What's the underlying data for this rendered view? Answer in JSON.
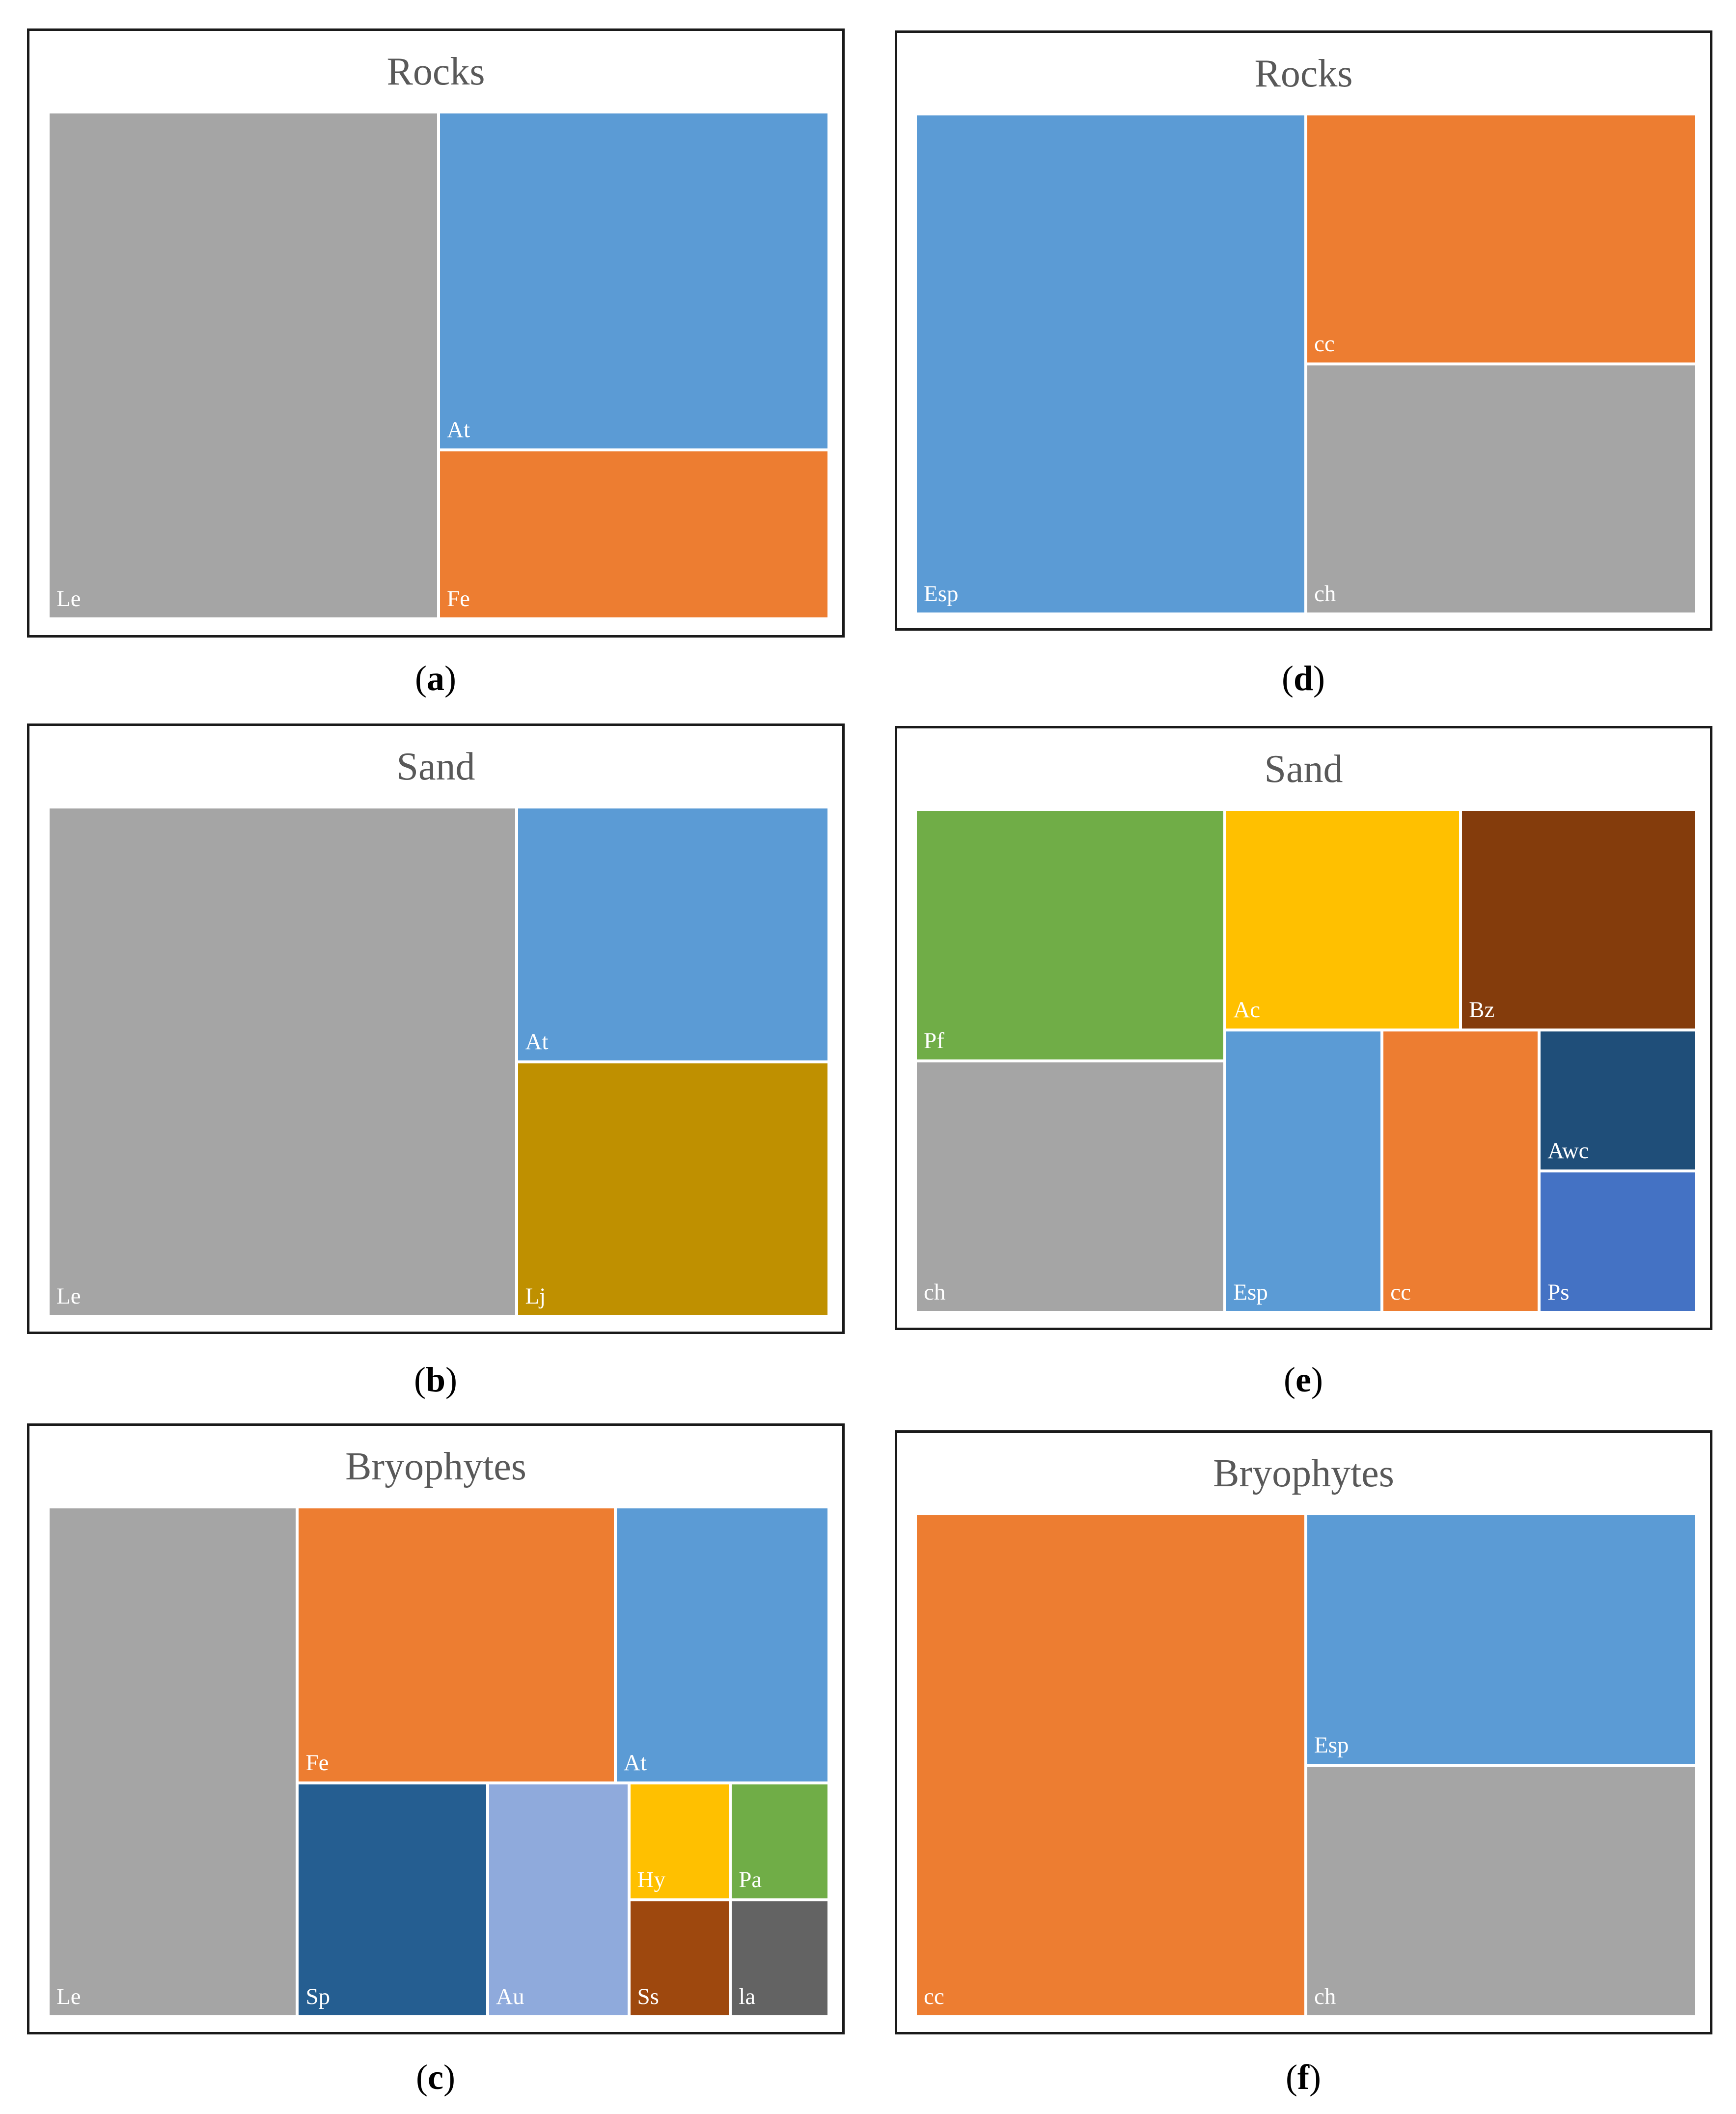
{
  "colors": {
    "gray": "#a5a5a5",
    "blue": "#5b9bd5",
    "orange": "#ed7d31",
    "gold": "#bf9000",
    "green": "#70ad47",
    "yellow": "#ffc000",
    "brown": "#843c0c",
    "navy": "#1f4e79",
    "royal": "#4472c4",
    "steel": "#255e91",
    "lavender": "#8faadc",
    "rust": "#9e480e",
    "darkgray": "#636363"
  },
  "chart_data": [
    {
      "type": "treemap",
      "panel": "a",
      "title": "Rocks",
      "caption": "a",
      "items": [
        {
          "label": "Le",
          "value": 1068,
          "color": "gray"
        },
        {
          "label": "At",
          "value": 712,
          "color": "blue"
        },
        {
          "label": "Fe",
          "value": 356,
          "color": "orange"
        }
      ]
    },
    {
      "type": "treemap",
      "panel": "b",
      "title": "Sand",
      "caption": "b",
      "items": [
        {
          "label": "Le",
          "value": 1287,
          "color": "gray"
        },
        {
          "label": "At",
          "value": 429,
          "color": "blue"
        },
        {
          "label": "Lj",
          "value": 428,
          "color": "gold"
        }
      ]
    },
    {
      "type": "treemap",
      "panel": "c",
      "title": "Bryophytes",
      "caption": "c",
      "items": [
        {
          "label": "Le",
          "value": 728,
          "color": "gray"
        },
        {
          "label": "Fe",
          "value": 503,
          "color": "orange"
        },
        {
          "label": "At",
          "value": 338,
          "color": "blue"
        },
        {
          "label": "Sp",
          "value": 255,
          "color": "steel"
        },
        {
          "label": "Au",
          "value": 189,
          "color": "lavender"
        },
        {
          "label": "Hy",
          "value": 68,
          "color": "yellow"
        },
        {
          "label": "Ss",
          "value": 68,
          "color": "rust"
        },
        {
          "label": "Pa",
          "value": 66,
          "color": "green"
        },
        {
          "label": "la",
          "value": 66,
          "color": "darkgray"
        }
      ]
    },
    {
      "type": "treemap",
      "panel": "d",
      "title": "Rocks",
      "caption": "d",
      "items": [
        {
          "label": "Esp",
          "value": 1045,
          "color": "blue"
        },
        {
          "label": "cc",
          "value": 523,
          "color": "orange"
        },
        {
          "label": "ch",
          "value": 522,
          "color": "gray"
        }
      ]
    },
    {
      "type": "treemap",
      "panel": "e",
      "title": "Sand",
      "caption": "e",
      "items": [
        {
          "label": "Pf",
          "value": 400,
          "color": "green"
        },
        {
          "label": "ch",
          "value": 400,
          "color": "gray"
        },
        {
          "label": "Ac",
          "value": 267,
          "color": "yellow"
        },
        {
          "label": "Bz",
          "value": 267,
          "color": "brown"
        },
        {
          "label": "Esp",
          "value": 228,
          "color": "blue"
        },
        {
          "label": "cc",
          "value": 228,
          "color": "orange"
        },
        {
          "label": "Awc",
          "value": 114,
          "color": "navy"
        },
        {
          "label": "Ps",
          "value": 114,
          "color": "royal"
        }
      ]
    },
    {
      "type": "treemap",
      "panel": "f",
      "title": "Bryophytes",
      "caption": "f",
      "items": [
        {
          "label": "cc",
          "value": 1045,
          "color": "orange"
        },
        {
          "label": "Esp",
          "value": 523,
          "color": "blue"
        },
        {
          "label": "ch",
          "value": 522,
          "color": "gray"
        }
      ]
    }
  ]
}
